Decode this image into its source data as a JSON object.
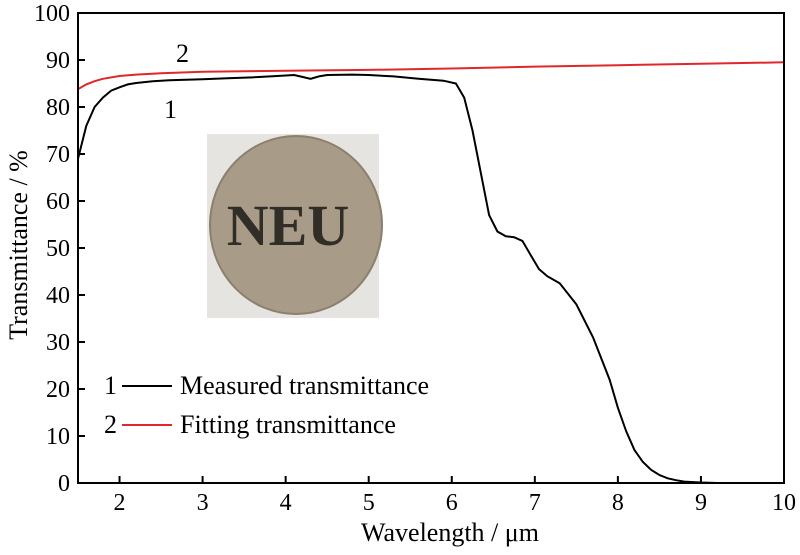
{
  "chart_data": {
    "type": "line",
    "title": "",
    "xlabel": "Wavelength / μm",
    "ylabel": "Transmittance / %",
    "xlim": [
      1.5,
      10
    ],
    "ylim": [
      0,
      100
    ],
    "xticks": [
      "2",
      "3",
      "4",
      "5",
      "6",
      "7",
      "8",
      "9",
      "10"
    ],
    "yticks": [
      "0",
      "10",
      "20",
      "30",
      "40",
      "50",
      "60",
      "70",
      "80",
      "90",
      "100"
    ],
    "grid": false,
    "legend_position": "bottom-left",
    "inset_image": "sample-photo-disc",
    "inset_text": "NEU",
    "series": [
      {
        "name": "Measured transmittance",
        "number_label": "1",
        "color": "#000000",
        "x": [
          1.5,
          1.6,
          1.7,
          1.8,
          1.9,
          2.0,
          2.1,
          2.2,
          2.4,
          2.6,
          2.8,
          3.0,
          3.3,
          3.6,
          3.9,
          4.1,
          4.2,
          4.3,
          4.4,
          4.5,
          4.8,
          5.0,
          5.3,
          5.6,
          5.9,
          6.05,
          6.15,
          6.25,
          6.35,
          6.45,
          6.55,
          6.65,
          6.75,
          6.85,
          6.95,
          7.05,
          7.15,
          7.3,
          7.5,
          7.7,
          7.9,
          8.0,
          8.1,
          8.2,
          8.3,
          8.4,
          8.5,
          8.6,
          8.7,
          8.8,
          9.0,
          9.2,
          9.5,
          10.0
        ],
        "y": [
          69.0,
          76.0,
          80.0,
          82.0,
          83.5,
          84.2,
          84.8,
          85.1,
          85.5,
          85.7,
          85.8,
          85.9,
          86.1,
          86.3,
          86.6,
          86.8,
          86.4,
          86.0,
          86.5,
          86.8,
          86.9,
          86.8,
          86.5,
          86.0,
          85.6,
          85.0,
          82.0,
          75.0,
          66.0,
          57.0,
          53.5,
          52.5,
          52.3,
          51.5,
          48.5,
          45.5,
          44.0,
          42.5,
          38.0,
          31.0,
          22.0,
          16.0,
          11.0,
          7.0,
          4.5,
          2.8,
          1.7,
          1.0,
          0.6,
          0.3,
          0.1,
          0.0,
          0.0,
          0.0
        ]
      },
      {
        "name": "Fitting transmittance",
        "number_label": "2",
        "color": "#e0272b",
        "x": [
          1.5,
          1.6,
          1.7,
          1.8,
          2.0,
          2.2,
          2.5,
          3.0,
          3.5,
          4.0,
          5.0,
          6.0,
          7.0,
          8.0,
          9.0,
          10.0
        ],
        "y": [
          83.8,
          84.8,
          85.5,
          86.0,
          86.6,
          86.9,
          87.2,
          87.5,
          87.6,
          87.7,
          87.9,
          88.2,
          88.6,
          88.9,
          89.2,
          89.5
        ]
      }
    ]
  }
}
